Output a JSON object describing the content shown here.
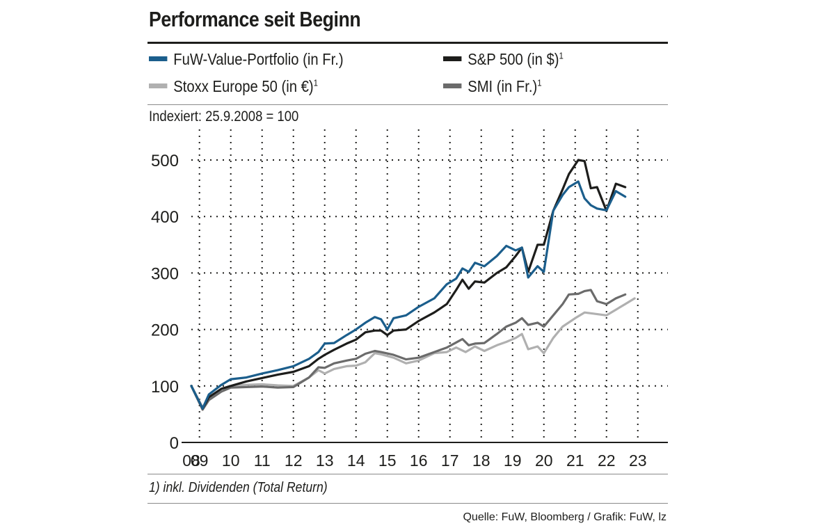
{
  "header": {
    "title": "Performance seit Beginn"
  },
  "legend": [
    {
      "label": "FuW-Value-Portfolio (in Fr.)",
      "note": "",
      "color": "#1b5e8c"
    },
    {
      "label": "S&P 500 (in $)",
      "note": "1",
      "color": "#1d1d1b"
    },
    {
      "label": "Stoxx Europe 50 (in €)",
      "note": "1",
      "color": "#b0b0b0"
    },
    {
      "label": "SMI (in Fr.)",
      "note": "1",
      "color": "#6b6b6b"
    }
  ],
  "subtitle": "Indexiert: 25.9.2008 = 100",
  "footnote": "1) inkl. Dividenden (Total Return)",
  "source": "Quelle: FuW, Bloomberg / Grafik: FuW, lz",
  "chart_data": {
    "type": "line",
    "title": "Performance seit Beginn",
    "ylabel": "Indexiert: 25.9.2008 = 100",
    "xlabel": "",
    "ylim": [
      0,
      500
    ],
    "xlim": [
      2008.74,
      2023.85
    ],
    "yticks": [
      0,
      100,
      200,
      300,
      400,
      500
    ],
    "xtick_labels": [
      "08",
      "09",
      "10",
      "11",
      "12",
      "13",
      "14",
      "15",
      "16",
      "17",
      "18",
      "19",
      "20",
      "21",
      "22",
      "23"
    ],
    "xtick_years": [
      2008,
      2009,
      2010,
      2011,
      2012,
      2013,
      2014,
      2015,
      2016,
      2017,
      2018,
      2019,
      2020,
      2021,
      2022,
      2023
    ],
    "grid": true,
    "series": [
      {
        "name": "Stoxx Europe 50 (in €)",
        "color": "#b0b0b0",
        "points": [
          [
            2008.74,
            100
          ],
          [
            2009.1,
            62
          ],
          [
            2009.3,
            80
          ],
          [
            2009.7,
            95
          ],
          [
            2010.0,
            100
          ],
          [
            2010.5,
            102
          ],
          [
            2011.0,
            103
          ],
          [
            2011.5,
            101
          ],
          [
            2012.0,
            100
          ],
          [
            2012.5,
            115
          ],
          [
            2012.8,
            128
          ],
          [
            2013.0,
            122
          ],
          [
            2013.3,
            130
          ],
          [
            2013.7,
            135
          ],
          [
            2014.0,
            136
          ],
          [
            2014.3,
            142
          ],
          [
            2014.6,
            158
          ],
          [
            2014.8,
            156
          ],
          [
            2015.2,
            150
          ],
          [
            2015.6,
            140
          ],
          [
            2016.0,
            145
          ],
          [
            2016.5,
            158
          ],
          [
            2016.9,
            160
          ],
          [
            2017.2,
            168
          ],
          [
            2017.5,
            160
          ],
          [
            2017.8,
            170
          ],
          [
            2018.1,
            162
          ],
          [
            2018.5,
            172
          ],
          [
            2018.8,
            178
          ],
          [
            2019.1,
            185
          ],
          [
            2019.3,
            192
          ],
          [
            2019.5,
            165
          ],
          [
            2019.8,
            170
          ],
          [
            2020.0,
            158
          ],
          [
            2020.3,
            185
          ],
          [
            2020.6,
            205
          ],
          [
            2021.0,
            220
          ],
          [
            2021.3,
            230
          ],
          [
            2021.6,
            228
          ],
          [
            2022.0,
            225
          ],
          [
            2022.3,
            235
          ],
          [
            2022.6,
            245
          ],
          [
            2022.9,
            255
          ]
        ]
      },
      {
        "name": "SMI (in Fr.)",
        "color": "#6b6b6b",
        "points": [
          [
            2008.74,
            100
          ],
          [
            2009.1,
            58
          ],
          [
            2009.3,
            75
          ],
          [
            2009.7,
            90
          ],
          [
            2010.0,
            97
          ],
          [
            2010.5,
            98
          ],
          [
            2011.0,
            99
          ],
          [
            2011.5,
            97
          ],
          [
            2012.0,
            98
          ],
          [
            2012.5,
            115
          ],
          [
            2012.8,
            133
          ],
          [
            2013.0,
            132
          ],
          [
            2013.3,
            140
          ],
          [
            2013.7,
            145
          ],
          [
            2014.0,
            148
          ],
          [
            2014.3,
            157
          ],
          [
            2014.6,
            162
          ],
          [
            2014.8,
            160
          ],
          [
            2015.2,
            155
          ],
          [
            2015.6,
            147
          ],
          [
            2016.0,
            150
          ],
          [
            2016.5,
            160
          ],
          [
            2016.9,
            168
          ],
          [
            2017.2,
            177
          ],
          [
            2017.4,
            183
          ],
          [
            2017.6,
            172
          ],
          [
            2017.8,
            175
          ],
          [
            2018.1,
            176
          ],
          [
            2018.5,
            192
          ],
          [
            2018.8,
            205
          ],
          [
            2019.1,
            212
          ],
          [
            2019.3,
            220
          ],
          [
            2019.5,
            208
          ],
          [
            2019.8,
            212
          ],
          [
            2020.0,
            205
          ],
          [
            2020.3,
            225
          ],
          [
            2020.6,
            245
          ],
          [
            2020.8,
            262
          ],
          [
            2021.1,
            263
          ],
          [
            2021.3,
            268
          ],
          [
            2021.5,
            270
          ],
          [
            2021.7,
            250
          ],
          [
            2022.0,
            245
          ],
          [
            2022.3,
            255
          ],
          [
            2022.6,
            262
          ]
        ]
      },
      {
        "name": "S&P 500 (in $)",
        "color": "#1d1d1b",
        "points": [
          [
            2008.74,
            100
          ],
          [
            2009.1,
            60
          ],
          [
            2009.3,
            80
          ],
          [
            2009.7,
            95
          ],
          [
            2010.0,
            100
          ],
          [
            2010.5,
            108
          ],
          [
            2011.0,
            114
          ],
          [
            2011.5,
            120
          ],
          [
            2012.0,
            125
          ],
          [
            2012.5,
            135
          ],
          [
            2012.8,
            148
          ],
          [
            2013.0,
            155
          ],
          [
            2013.3,
            164
          ],
          [
            2013.7,
            175
          ],
          [
            2014.0,
            182
          ],
          [
            2014.3,
            195
          ],
          [
            2014.6,
            198
          ],
          [
            2014.8,
            198
          ],
          [
            2015.0,
            190
          ],
          [
            2015.2,
            198
          ],
          [
            2015.6,
            200
          ],
          [
            2016.0,
            215
          ],
          [
            2016.5,
            230
          ],
          [
            2016.9,
            245
          ],
          [
            2017.2,
            270
          ],
          [
            2017.4,
            288
          ],
          [
            2017.6,
            272
          ],
          [
            2017.8,
            285
          ],
          [
            2018.1,
            283
          ],
          [
            2018.5,
            300
          ],
          [
            2018.8,
            310
          ],
          [
            2019.1,
            330
          ],
          [
            2019.3,
            345
          ],
          [
            2019.5,
            302
          ],
          [
            2019.8,
            350
          ],
          [
            2020.0,
            350
          ],
          [
            2020.3,
            410
          ],
          [
            2020.6,
            448
          ],
          [
            2020.8,
            475
          ],
          [
            2021.1,
            500
          ],
          [
            2021.3,
            498
          ],
          [
            2021.5,
            450
          ],
          [
            2021.7,
            452
          ],
          [
            2022.0,
            410
          ],
          [
            2022.3,
            458
          ],
          [
            2022.6,
            452
          ]
        ]
      },
      {
        "name": "FuW-Value-Portfolio (in Fr.)",
        "color": "#1b5e8c",
        "points": [
          [
            2008.74,
            100
          ],
          [
            2009.1,
            60
          ],
          [
            2009.3,
            85
          ],
          [
            2009.7,
            102
          ],
          [
            2010.0,
            112
          ],
          [
            2010.5,
            115
          ],
          [
            2011.0,
            122
          ],
          [
            2011.5,
            128
          ],
          [
            2012.0,
            135
          ],
          [
            2012.5,
            148
          ],
          [
            2012.8,
            160
          ],
          [
            2013.0,
            175
          ],
          [
            2013.3,
            176
          ],
          [
            2013.7,
            190
          ],
          [
            2014.0,
            200
          ],
          [
            2014.3,
            212
          ],
          [
            2014.6,
            222
          ],
          [
            2014.8,
            218
          ],
          [
            2015.0,
            200
          ],
          [
            2015.2,
            220
          ],
          [
            2015.6,
            225
          ],
          [
            2016.0,
            240
          ],
          [
            2016.5,
            255
          ],
          [
            2016.9,
            280
          ],
          [
            2017.2,
            290
          ],
          [
            2017.4,
            308
          ],
          [
            2017.6,
            302
          ],
          [
            2017.8,
            318
          ],
          [
            2018.1,
            312
          ],
          [
            2018.5,
            330
          ],
          [
            2018.8,
            348
          ],
          [
            2019.1,
            340
          ],
          [
            2019.3,
            345
          ],
          [
            2019.5,
            292
          ],
          [
            2019.8,
            312
          ],
          [
            2020.0,
            302
          ],
          [
            2020.3,
            410
          ],
          [
            2020.6,
            438
          ],
          [
            2020.8,
            452
          ],
          [
            2021.1,
            462
          ],
          [
            2021.3,
            432
          ],
          [
            2021.5,
            420
          ],
          [
            2021.7,
            414
          ],
          [
            2022.0,
            411
          ],
          [
            2022.3,
            445
          ],
          [
            2022.6,
            435
          ]
        ]
      }
    ]
  }
}
